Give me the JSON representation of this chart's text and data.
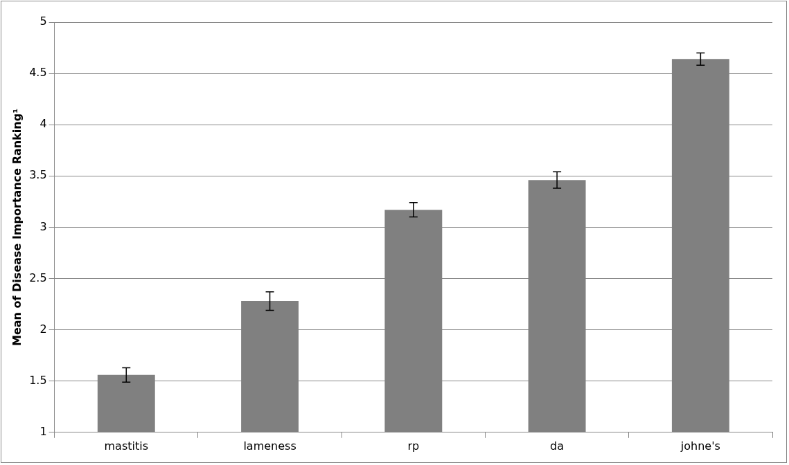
{
  "chart_data": {
    "type": "bar",
    "ylabel": "Mean of Disease Importance Ranking¹",
    "categories": [
      "mastitis",
      "lameness",
      "rp",
      "da",
      "johne's"
    ],
    "values": [
      1.56,
      2.28,
      3.17,
      3.46,
      4.64
    ],
    "errors": [
      0.07,
      0.09,
      0.07,
      0.08,
      0.06
    ],
    "color": "#808080",
    "ylim": [
      1,
      5
    ],
    "yticks": [
      1,
      1.5,
      2,
      2.5,
      3,
      3.5,
      4,
      4.5,
      5
    ],
    "grid": "y",
    "legend": false
  }
}
